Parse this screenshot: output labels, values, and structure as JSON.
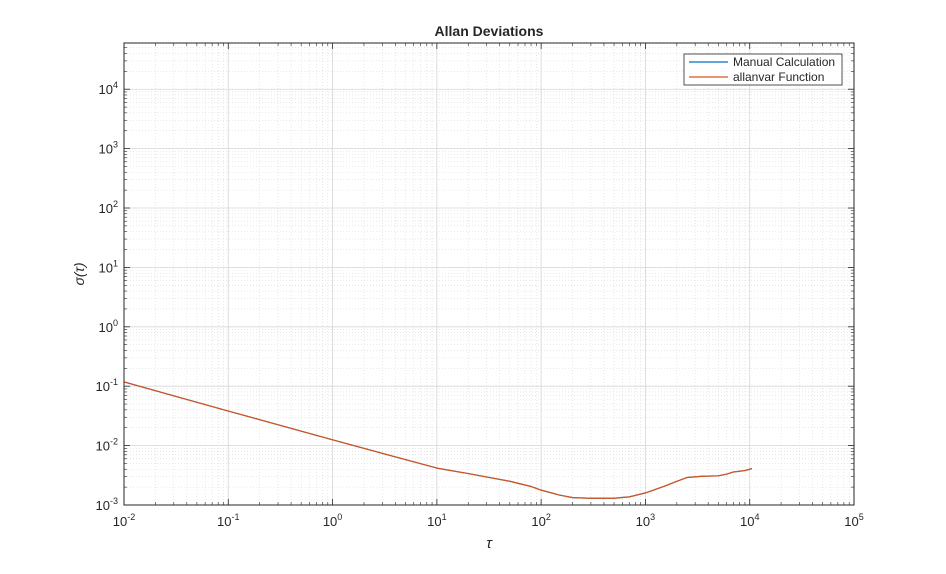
{
  "chart_data": {
    "type": "line",
    "title": "Allan Deviations",
    "xlabel": "τ",
    "ylabel": "σ(τ)",
    "xscale": "log",
    "yscale": "log",
    "xlim": [
      0.01,
      100000
    ],
    "ylim": [
      0.001,
      60000
    ],
    "grid": true,
    "minor_grid": true,
    "legend_position": "top-right",
    "x_ticks": [
      {
        "value": 0.01,
        "base": "10",
        "exp": "-2"
      },
      {
        "value": 0.1,
        "base": "10",
        "exp": "-1"
      },
      {
        "value": 1,
        "base": "10",
        "exp": "0"
      },
      {
        "value": 10,
        "base": "10",
        "exp": "1"
      },
      {
        "value": 100,
        "base": "10",
        "exp": "2"
      },
      {
        "value": 1000,
        "base": "10",
        "exp": "3"
      },
      {
        "value": 10000,
        "base": "10",
        "exp": "4"
      },
      {
        "value": 100000,
        "base": "10",
        "exp": "5"
      }
    ],
    "y_ticks": [
      {
        "value": 0.001,
        "base": "10",
        "exp": "-3"
      },
      {
        "value": 0.01,
        "base": "10",
        "exp": "-2"
      },
      {
        "value": 0.1,
        "base": "10",
        "exp": "-1"
      },
      {
        "value": 1,
        "base": "10",
        "exp": "0"
      },
      {
        "value": 10,
        "base": "10",
        "exp": "1"
      },
      {
        "value": 100,
        "base": "10",
        "exp": "2"
      },
      {
        "value": 1000,
        "base": "10",
        "exp": "3"
      },
      {
        "value": 10000,
        "base": "10",
        "exp": "4"
      }
    ],
    "series": [
      {
        "name": "Manual Calculation",
        "color": "#0072BD",
        "points": [
          [
            0.01,
            0.118
          ],
          [
            0.1,
            0.0382
          ],
          [
            1,
            0.0125
          ],
          [
            10,
            0.00418
          ],
          [
            20,
            0.00338
          ],
          [
            50,
            0.00251
          ],
          [
            80,
            0.00205
          ],
          [
            100,
            0.00178
          ],
          [
            150,
            0.00147
          ],
          [
            200,
            0.00133
          ],
          [
            300,
            0.0013
          ],
          [
            500,
            0.0013
          ],
          [
            700,
            0.00137
          ],
          [
            1000,
            0.0016
          ],
          [
            1500,
            0.00205
          ],
          [
            2000,
            0.0025
          ],
          [
            2500,
            0.0029
          ],
          [
            3500,
            0.00305
          ],
          [
            5000,
            0.0031
          ],
          [
            6000,
            0.0033
          ],
          [
            7000,
            0.0036
          ],
          [
            8000,
            0.0037
          ],
          [
            9000,
            0.0038
          ],
          [
            10000,
            0.004
          ],
          [
            10500,
            0.0041
          ]
        ]
      },
      {
        "name": "allanvar Function",
        "color": "#D95319",
        "points": [
          [
            0.01,
            0.118
          ],
          [
            0.1,
            0.0382
          ],
          [
            1,
            0.0125
          ],
          [
            10,
            0.00418
          ],
          [
            20,
            0.00338
          ],
          [
            50,
            0.00251
          ],
          [
            80,
            0.00205
          ],
          [
            100,
            0.00178
          ],
          [
            150,
            0.00147
          ],
          [
            200,
            0.00133
          ],
          [
            300,
            0.0013
          ],
          [
            500,
            0.0013
          ],
          [
            700,
            0.00137
          ],
          [
            1000,
            0.0016
          ],
          [
            1500,
            0.00205
          ],
          [
            2000,
            0.0025
          ],
          [
            2500,
            0.0029
          ],
          [
            3500,
            0.00305
          ],
          [
            5000,
            0.0031
          ],
          [
            6000,
            0.0033
          ],
          [
            7000,
            0.0036
          ],
          [
            8000,
            0.0037
          ],
          [
            9000,
            0.0038
          ],
          [
            10000,
            0.004
          ],
          [
            10500,
            0.0041
          ]
        ]
      }
    ]
  }
}
